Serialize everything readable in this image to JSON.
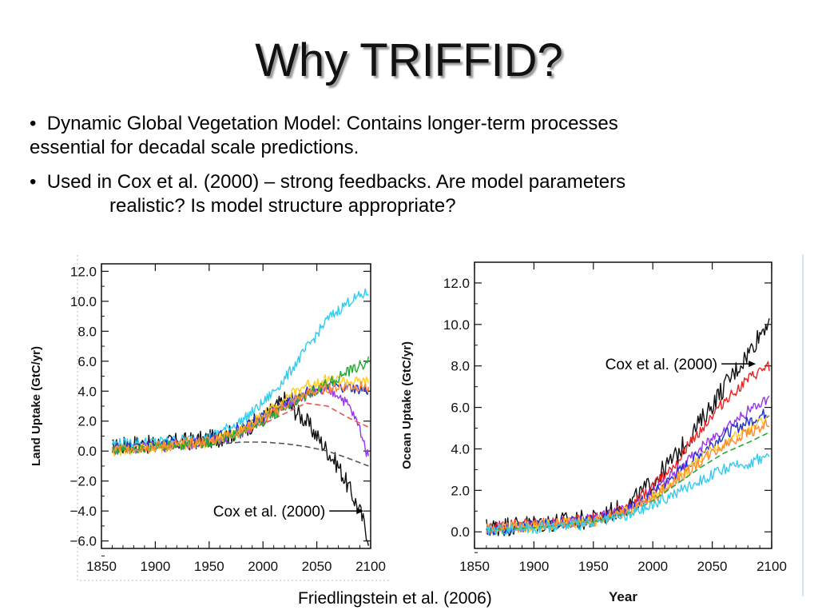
{
  "slide": {
    "title": "Why TRIFFID?",
    "bullets": [
      {
        "marker": "•",
        "line1": "Dynamic Global Vegetation Model:  Contains longer-term processes",
        "line2": "essential for decadal scale predictions."
      },
      {
        "marker": "•",
        "line1": "Used in Cox et al. (2000) – strong feedbacks.  Are model parameters",
        "line2": "realistic?  Is model structure appropriate?"
      }
    ],
    "credit": "Friedlingstein et al. (2006)"
  },
  "chart_data": [
    {
      "type": "line",
      "ylabel": "Land Uptake (GtC/yr)",
      "xlabel": "",
      "xlim": [
        1850,
        2100
      ],
      "ylim": [
        -6.5,
        12.5
      ],
      "xticks": [
        "1850",
        "1900",
        "1950",
        "2000",
        "2050",
        "2100"
      ],
      "yticks": [
        "12.0",
        "10.0",
        "8.0",
        "6.0",
        "4.0",
        "2.0",
        "0.0",
        "−2.0",
        "−4.0",
        "−6.0"
      ],
      "annotation": {
        "text": "Cox et al. (2000)",
        "x": 2095,
        "y": -4.0
      },
      "series": [
        {
          "color": "#111111",
          "dash": false,
          "x": [
            1860,
            1880,
            1900,
            1920,
            1940,
            1960,
            1980,
            2000,
            2020,
            2040,
            2060,
            2070,
            2080,
            2090,
            2098
          ],
          "y": [
            0.2,
            0.5,
            0.4,
            0.6,
            0.7,
            0.9,
            1.4,
            2.2,
            3.4,
            2.0,
            0.0,
            -1.0,
            -2.5,
            -4.0,
            -5.8
          ]
        },
        {
          "color": "#555555",
          "dash": true,
          "x": [
            1860,
            1900,
            1950,
            1980,
            2000,
            2020,
            2040,
            2060,
            2080,
            2098
          ],
          "y": [
            0.0,
            0.2,
            0.4,
            0.6,
            0.6,
            0.5,
            0.3,
            0.0,
            -0.5,
            -1.0
          ]
        },
        {
          "color": "#33ccee",
          "dash": false,
          "x": [
            1860,
            1900,
            1950,
            1980,
            2000,
            2020,
            2040,
            2060,
            2080,
            2098
          ],
          "y": [
            0.5,
            0.6,
            0.9,
            2.0,
            3.2,
            4.8,
            6.8,
            8.8,
            10.0,
            10.6
          ]
        },
        {
          "color": "#9933ee",
          "dash": false,
          "x": [
            1860,
            1900,
            1950,
            1980,
            2000,
            2020,
            2040,
            2060,
            2070,
            2080,
            2090,
            2098
          ],
          "y": [
            0.1,
            0.3,
            0.6,
            1.2,
            2.1,
            3.0,
            3.8,
            4.0,
            3.8,
            3.0,
            1.5,
            -0.5
          ]
        },
        {
          "color": "#ee5555",
          "dash": true,
          "x": [
            1860,
            1900,
            1950,
            2000,
            2040,
            2060,
            2080,
            2098
          ],
          "y": [
            0.1,
            0.3,
            0.6,
            1.8,
            3.2,
            3.0,
            2.2,
            1.6
          ]
        },
        {
          "color": "#2233cc",
          "dash": false,
          "x": [
            1860,
            1900,
            1950,
            1980,
            2000,
            2020,
            2040,
            2060,
            2080,
            2098
          ],
          "y": [
            0.2,
            0.4,
            0.8,
            1.5,
            2.3,
            3.3,
            4.0,
            4.3,
            4.2,
            4.0
          ]
        },
        {
          "color": "#ffcc22",
          "dash": false,
          "x": [
            1860,
            1900,
            1950,
            1980,
            2000,
            2020,
            2040,
            2060,
            2080,
            2098
          ],
          "y": [
            0.0,
            0.2,
            0.6,
            1.4,
            2.4,
            3.5,
            4.4,
            4.8,
            4.6,
            4.6
          ]
        },
        {
          "color": "#22aa33",
          "dash": false,
          "x": [
            1860,
            1900,
            1950,
            1980,
            2000,
            2020,
            2040,
            2060,
            2080,
            2098
          ],
          "y": [
            0.1,
            0.3,
            0.6,
            1.2,
            2.0,
            2.9,
            3.7,
            4.5,
            5.3,
            6.0
          ]
        },
        {
          "color": "#ff8833",
          "dash": false,
          "x": [
            1860,
            1900,
            1950,
            1980,
            2000,
            2020,
            2040,
            2060,
            2080,
            2098
          ],
          "y": [
            0.1,
            0.3,
            0.7,
            1.3,
            2.1,
            3.0,
            3.8,
            4.2,
            4.3,
            4.3
          ]
        }
      ]
    },
    {
      "type": "line",
      "ylabel": "Ocean Uptake (GtC/yr)",
      "xlabel": "Year",
      "xlim": [
        1850,
        2100
      ],
      "ylim": [
        -0.8,
        13.0
      ],
      "xticks": [
        "1850",
        "1900",
        "1950",
        "2000",
        "2050",
        "2100"
      ],
      "yticks": [
        "12.0",
        "10.0",
        "8.0",
        "6.0",
        "4.0",
        "2.0",
        "0.0"
      ],
      "annotation": {
        "text": "Cox et al. (2000)",
        "x": 2088,
        "y": 8.1
      },
      "series": [
        {
          "color": "#111111",
          "dash": false,
          "x": [
            1860,
            1900,
            1950,
            1980,
            2000,
            2020,
            2040,
            2060,
            2080,
            2098
          ],
          "y": [
            0.2,
            0.4,
            0.6,
            1.3,
            2.4,
            3.7,
            5.3,
            7.0,
            8.6,
            10.3
          ]
        },
        {
          "color": "#ee2222",
          "dash": false,
          "x": [
            1860,
            1900,
            1950,
            1980,
            2000,
            2020,
            2040,
            2060,
            2080,
            2098
          ],
          "y": [
            0.2,
            0.4,
            0.6,
            1.2,
            2.2,
            3.4,
            4.9,
            6.3,
            7.3,
            8.0
          ]
        },
        {
          "color": "#9933ee",
          "dash": false,
          "x": [
            1860,
            1900,
            1950,
            1980,
            2000,
            2020,
            2040,
            2060,
            2080,
            2098
          ],
          "y": [
            0.1,
            0.3,
            0.6,
            1.1,
            1.9,
            2.9,
            4.0,
            5.0,
            5.8,
            6.5
          ]
        },
        {
          "color": "#2233cc",
          "dash": false,
          "x": [
            1860,
            1900,
            1950,
            1980,
            2000,
            2020,
            2040,
            2060,
            2080,
            2098
          ],
          "y": [
            0.1,
            0.3,
            0.6,
            1.1,
            1.8,
            2.8,
            3.8,
            4.7,
            5.3,
            5.8
          ]
        },
        {
          "color": "#ffcc22",
          "dash": false,
          "x": [
            1860,
            1900,
            1950,
            1980,
            2000,
            2020,
            2040,
            2060,
            2080,
            2098
          ],
          "y": [
            0.1,
            0.3,
            0.5,
            1.0,
            1.7,
            2.6,
            3.5,
            4.3,
            4.9,
            5.5
          ]
        },
        {
          "color": "#ff8833",
          "dash": false,
          "x": [
            1860,
            1900,
            1950,
            1980,
            2000,
            2020,
            2040,
            2060,
            2080,
            2098
          ],
          "y": [
            0.1,
            0.3,
            0.5,
            1.0,
            1.6,
            2.5,
            3.4,
            4.2,
            4.8,
            5.2
          ]
        },
        {
          "color": "#22aa33",
          "dash": true,
          "x": [
            1860,
            1900,
            1950,
            1980,
            2000,
            2020,
            2040,
            2060,
            2080,
            2098
          ],
          "y": [
            0.1,
            0.2,
            0.5,
            0.9,
            1.5,
            2.3,
            3.1,
            3.8,
            4.3,
            4.8
          ]
        },
        {
          "color": "#33ccee",
          "dash": false,
          "x": [
            1860,
            1900,
            1950,
            1980,
            2000,
            2020,
            2040,
            2060,
            2080,
            2098
          ],
          "y": [
            0.1,
            0.2,
            0.4,
            0.8,
            1.3,
            1.9,
            2.5,
            3.0,
            3.3,
            3.7
          ]
        }
      ]
    }
  ]
}
